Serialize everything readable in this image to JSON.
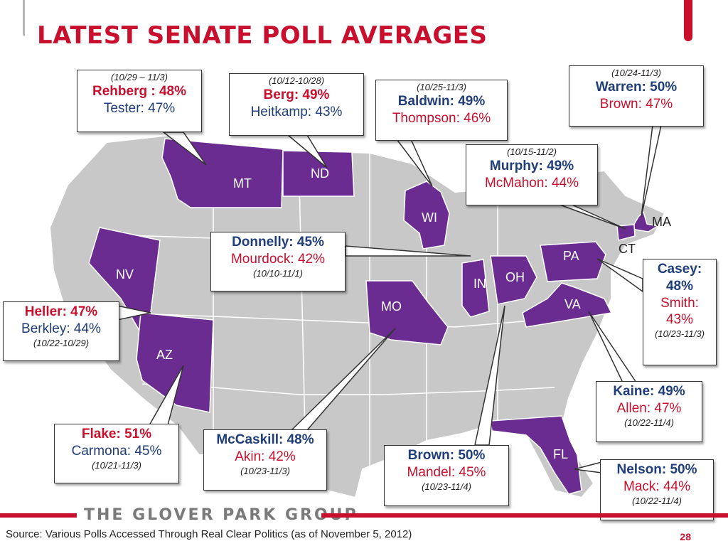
{
  "title": "LATEST SENATE POLL AVERAGES",
  "colors": {
    "highlight_state": "#6b2c91",
    "base_state": "#c8c8c8",
    "republican_text": "#c8102e",
    "democrat_text": "#1f3e7a",
    "brand_red": "#c8102e"
  },
  "state_labels": {
    "MT": "MT",
    "ND": "ND",
    "WI": "WI",
    "MA": "MA",
    "CT": "CT",
    "NV": "NV",
    "IN": "IN",
    "OH": "OH",
    "PA": "PA",
    "MO": "MO",
    "VA": "VA",
    "AZ": "AZ",
    "FL": "FL"
  },
  "polls": {
    "mt": {
      "date": "(10/29 – 11/3)",
      "c1": "Rehberg : 48%",
      "c2": "Tester: 47%"
    },
    "nd": {
      "date": "(10/12-10/28)",
      "c1": "Berg: 49%",
      "c2": "Heitkamp: 43%"
    },
    "wi": {
      "date": "(10/25-11/3)",
      "c1": "Baldwin: 49%",
      "c2": "Thompson: 46%"
    },
    "ma": {
      "date": "(10/24-11/3)",
      "c1": "Warren: 50%",
      "c2": "Brown: 47%"
    },
    "ct": {
      "date": "(10/15-11/2)",
      "c1": "Murphy: 49%",
      "c2": "McMahon: 44%"
    },
    "in": {
      "c1": "Donnelly: 45%",
      "c2": "Mourdock: 42%",
      "date": "(10/10-11/1)"
    },
    "nv": {
      "c1": "Heller: 47%",
      "c2": "Berkley: 44%",
      "date": "(10/22-10/29)"
    },
    "pa": {
      "c1a": "Casey:",
      "c1b": "48%",
      "c2a": "Smith:",
      "c2b": "43%",
      "date": "(10/23-11/3)"
    },
    "va": {
      "c1": "Kaine: 49%",
      "c2": "Allen: 47%",
      "date": "(10/22-11/4)"
    },
    "az": {
      "c1": "Flake: 51%",
      "c2": "Carmona: 45%",
      "date": "(10/21-11/3)"
    },
    "mo": {
      "c1": "McCaskill: 48%",
      "c2": "Akin: 42%",
      "date": "(10/23-11/3)"
    },
    "oh": {
      "c1": "Brown: 50%",
      "c2": "Mandel: 45%",
      "date": "(10/23-11/4)"
    },
    "fl": {
      "c1": "Nelson: 50%",
      "c2": "Mack: 44%",
      "date": "(10/22-11/4)"
    }
  },
  "footer": {
    "logo": "THE GLOVER PARK GROUP",
    "source": "Source: Various Polls Accessed Through Real Clear Politics (as of November 5, 2012)",
    "page_number": "28"
  }
}
